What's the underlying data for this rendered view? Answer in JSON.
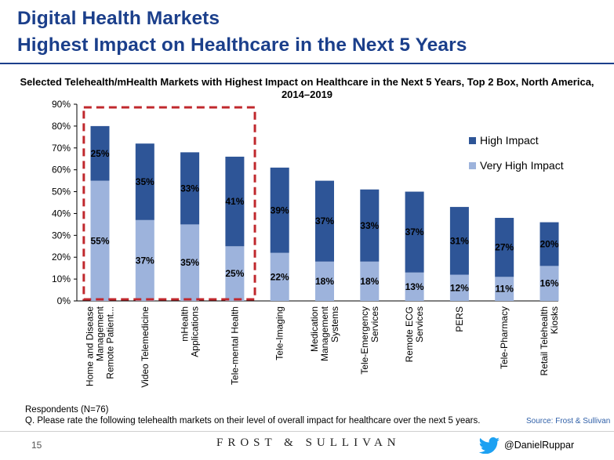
{
  "header": {
    "title_line1": "Digital Health Markets",
    "title_line2": "Highest Impact on Healthcare in the Next 5 Years"
  },
  "chart_data": {
    "type": "bar",
    "stacked": true,
    "title": "Selected Telehealth/mHealth Markets with Highest Impact on Healthcare in the Next 5 Years, Top 2 Box, North America, 2014–2019",
    "categories": [
      "Home and Disease Management Remote Patient...",
      "Video Telemedicine",
      "mHealth Applications",
      "Tele-mental Health",
      "Tele-Imaging",
      "Medication Management Systems",
      "Tele-Emergency Services",
      "Remote ECG Services",
      "PERS",
      "Tele-Pharmacy",
      "Retail Telehealth Kiosks"
    ],
    "category_lines": [
      [
        "Home and Disease",
        "Management",
        "Remote Patient..."
      ],
      [
        "Video Telemedicine"
      ],
      [
        "mHealth",
        "Applications"
      ],
      [
        "Tele-mental Health"
      ],
      [
        "Tele-Imaging"
      ],
      [
        "Medication",
        "Management",
        "Systems"
      ],
      [
        "Tele-Emergency",
        "Services"
      ],
      [
        "Remote ECG",
        "Services"
      ],
      [
        "PERS"
      ],
      [
        "Tele-Pharmacy"
      ],
      [
        "Retail Telehealth",
        "Kiosks"
      ]
    ],
    "series": [
      {
        "name": "Very High Impact",
        "color": "#9db3dc",
        "values": [
          55,
          37,
          35,
          25,
          22,
          18,
          18,
          13,
          12,
          11,
          16
        ],
        "labels": [
          "55%",
          "37%",
          "35%",
          "25%",
          "22%",
          "18%",
          "18%",
          "13%",
          "12%",
          "11%",
          "16%"
        ]
      },
      {
        "name": "High Impact",
        "color": "#2e5597",
        "values": [
          25,
          35,
          33,
          41,
          39,
          37,
          33,
          37,
          31,
          27,
          20
        ],
        "labels": [
          "25%",
          "35%",
          "33%",
          "41%",
          "39%",
          "37%",
          "33%",
          "37%",
          "31%",
          "27%",
          "20%"
        ]
      }
    ],
    "ylim": [
      0,
      90
    ],
    "yticks": [
      "0%",
      "10%",
      "20%",
      "30%",
      "40%",
      "50%",
      "60%",
      "70%",
      "80%",
      "90%"
    ],
    "legend": [
      "High Impact",
      "Very High Impact"
    ],
    "legend_position": "right",
    "highlight": {
      "categories": 4,
      "color": "#c0282d",
      "style": "dashed"
    },
    "grid": false
  },
  "notes": {
    "respondents": "Respondents (N=76)",
    "question": "Q. Please rate the following telehealth markets on their level of overall impact for healthcare over the next 5 years.",
    "source": "Source: Frost & Sullivan"
  },
  "footer": {
    "page_number": "15",
    "brand": "FROST & SULLIVAN",
    "twitter_handle": "@DanielRuppar",
    "twitter_icon": "twitter-bird-icon"
  }
}
